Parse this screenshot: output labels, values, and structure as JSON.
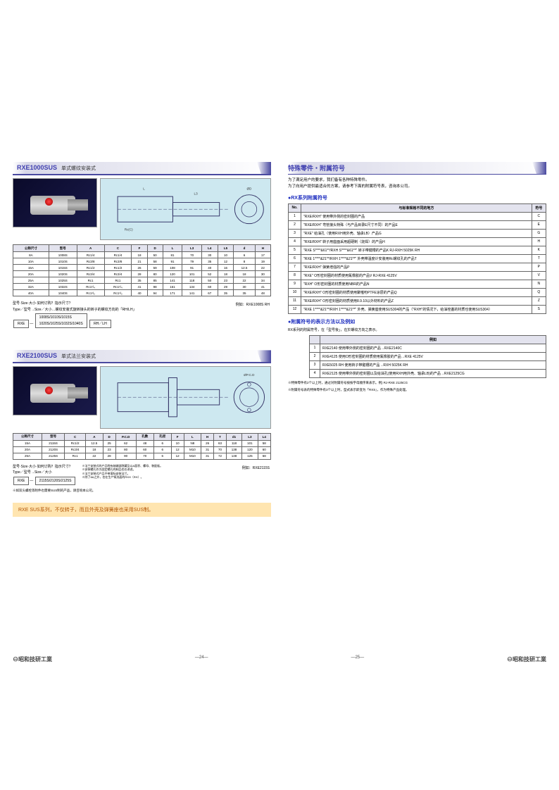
{
  "left": {
    "s1": {
      "model": "RXE1000SUS",
      "sub": "单式螺纹安装式",
      "tbl": {
        "headers": [
          "公称尺寸",
          "型号",
          "A",
          "C",
          "F",
          "D",
          "L",
          "L3",
          "L4",
          "L5",
          "d",
          "H"
        ],
        "rows": [
          [
            "8A",
            "1008S",
            "Rc1/4",
            "Rc1/4",
            "18",
            "50",
            "81",
            "70",
            "30",
            "10",
            "6",
            "17"
          ],
          [
            "10A",
            "1010S",
            "Rc3/8",
            "Rc3/8",
            "21",
            "58",
            "91",
            "79",
            "35",
            "12",
            "8",
            "19"
          ],
          [
            "15A",
            "1015S",
            "Rc1/2",
            "Rc1/2",
            "26",
            "59",
            "108",
            "91",
            "40",
            "16",
            "12.5",
            "22"
          ],
          [
            "20A",
            "1020S",
            "Rc3/4",
            "Rc3/4",
            "28",
            "80",
            "120",
            "101",
            "52",
            "18",
            "18",
            "30"
          ],
          [
            "25A",
            "1025S",
            "Rc1",
            "Rc1",
            "35",
            "85",
            "141",
            "118",
            "50",
            "23",
            "22",
            "34"
          ],
          [
            "32A",
            "1032S",
            "Rc1¹/₄",
            "Rc1¹/₄",
            "41",
            "98",
            "161",
            "134",
            "60",
            "29",
            "30",
            "41"
          ],
          [
            "40A",
            "1040S",
            "Rc1¹/₂",
            "Rc1¹/₂",
            "40",
            "94",
            "171",
            "141",
            "67",
            "35",
            "35",
            "48"
          ]
        ]
      },
      "note_l1": "型号·Size·大小·如何订购？指示尺寸？",
      "note_l2": "Type／型号→Size／大小…螺纹安装式旋转接头的转子的螺纹方向的「RH/LH」",
      "box1": "RXE",
      "box2": "1008S/1010S/1015S\n1020S/1025S/1032S/1040S",
      "box3": "RH／LH",
      "ex": "例如：RXE1008S RH"
    },
    "s2": {
      "model": "RXE2100SUS",
      "sub": "单式法兰安装式",
      "tbl": {
        "headers": [
          "公称尺寸",
          "型号",
          "C",
          "A",
          "D",
          "P.C.D",
          "孔数",
          "孔径",
          "F",
          "L",
          "H",
          "T",
          "d1",
          "L3",
          "L4"
        ],
        "rows": [
          [
            "15A",
            "2115S",
            "Rc1/2",
            "12.5",
            "25",
            "62",
            "48",
            "6",
            "10",
            "N8",
            "26",
            "63",
            "118",
            "101",
            "58"
          ],
          [
            "20A",
            "2120S",
            "Rc3/4",
            "18",
            "23",
            "80",
            "60",
            "6",
            "12",
            "M10",
            "31",
            "70",
            "138",
            "120",
            "60"
          ],
          [
            "25A",
            "2125S",
            "Rc1",
            "22",
            "28",
            "90",
            "70",
            "6",
            "12",
            "M10",
            "31",
            "72",
            "148",
            "125",
            "68"
          ]
        ]
      },
      "note_l1": "型号·Size·大小·如何订购？指示尺寸？",
      "note_l2": "Type／型号→Size／大小",
      "box1": "RXE",
      "box2": "2115S/2120S/2125S",
      "ex": "例如：RXE2115S",
      "warn1": "※法兰安装式的产品附有轴端部隐藏及以A面积、螺母、装配板。",
      "warn2": "※安装螺孔作为固定螺孔的制品也在讲述。",
      "warn3": "※法兰安装式产品不带滚标安装法兰。",
      "warn4": "※除了8A之外，也在生产铸洗面的RXH（RH）。"
    },
    "foot": "※如双头螺栓等附件也需要SUS制的产品，请咨询本公司。",
    "hl": "RXE SUS系列，不仅转子，而且外壳及弹簧座也采用SUS制。"
  },
  "right": {
    "title": "特殊零件・附属符号",
    "intro1": "为了满足用户的要求，我们备有各种特殊零件。",
    "intro2": "为了向用户提供最适合的方案，请参考下面的附属符号表，咨询本公司。",
    "b1": "●RX系列附属符号",
    "t1": {
      "h": [
        "No.",
        "与标准规格不同的地方",
        "符号"
      ],
      "r": [
        [
          "1",
          "\"RXE/RXH\" 使用带外侧的密封圈的产品",
          "C"
        ],
        [
          "2",
          "\"RXE/RXH\" 弯管接头特殊（与产品目录E尺寸不同）的产品E",
          "E"
        ],
        [
          "3",
          "\"RXE\" 给油孔（使用RXH用外壳、轴承LB）产品G",
          "G"
        ],
        [
          "4",
          "\"RXE/RXH\" 转子用座面采用超硬制（烧焊）的产品H",
          "H"
        ],
        [
          "5",
          "\"RXE S****&61**/RXH S****&61**\" 转子带键槽的产品K RJ-RXH 5025K RH",
          "K"
        ],
        [
          "6",
          "\"RXE 1****&21**/RXH 1****&21**\" 外壳带温度计安装用Rc螺纹孔的产品T",
          "T"
        ],
        [
          "7",
          "\"RXE/RXH\" 弹簧增强的产品P",
          "P"
        ],
        [
          "8",
          "\"RXE\" O形密封圈的材质使用氟橡胶的产品V RJ-RXE 4125V",
          "V"
        ],
        [
          "9",
          "\"RXH\" O形密封圈的材质使用NBR的产品N",
          "N"
        ],
        [
          "10",
          "\"RXE/RXH\" O形密封圈的材质使用聚噻吩PTFE涂层的产品Q",
          "Q"
        ],
        [
          "11",
          "\"RXE/RXH\" O形密封圈的材质使用8.9.10以外材料的产品Z",
          "Z"
        ],
        [
          "12",
          "\"RXE 1****&21**/RXH 1****&21**\" 外壳、弹簧座使用SUS304的产品（\"RXH\"的情况下，给油栓塞的材质也使用SUS304）",
          "S"
        ]
      ]
    },
    "b2": "●附属符号的表示方法以及例如",
    "b2sub": "RX系列的附属符号，在「型号後」，在於螺纹方向之表示。",
    "t2": {
      "h": [
        "",
        "例如"
      ],
      "r": [
        [
          "1",
          "RXE2140 使用带外侧的密封圈的产品→RXE2140C"
        ],
        [
          "2",
          "RXE4125 使用O形密封圈的材质使用氟橡胶的产品→RXE 4125V"
        ],
        [
          "3",
          "RXE5025 RH 使用转子带键槽的产品→RXH 5025K RH"
        ],
        [
          "4",
          "RXE2125 使用带外侧的密封圈以及给油孔(使用RXH用外壳、轴承LB)的产品→RXE2125CG"
        ]
      ]
    },
    "fine1": "※特殊零件有2个以上时，通过对附属符号按按字母顺序来表示。例) RJ-RXE 2125CG",
    "fine2": "※附属符号表的特殊零件有3个以上时，型式表示即变为「RXS」，作为特殊产品处理。"
  },
  "footer": {
    "co": "昭和技研工業",
    "p1": "—24—",
    "p2": "—25—"
  }
}
